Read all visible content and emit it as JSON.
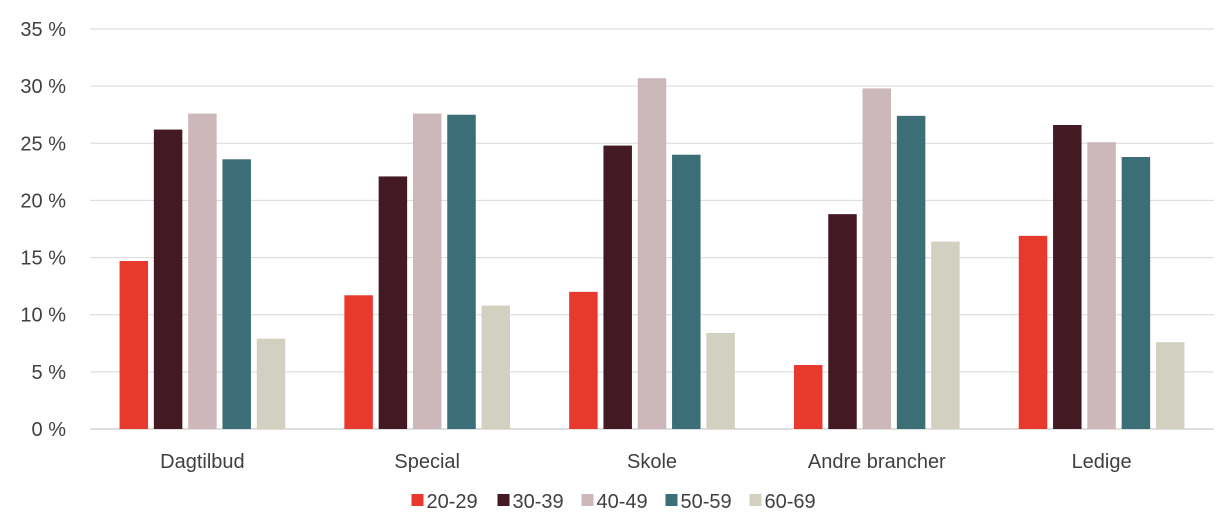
{
  "chart_data": {
    "type": "bar",
    "title": "",
    "xlabel": "",
    "ylabel": "",
    "categories": [
      "Dagtilbud",
      "Special",
      "Skole",
      "Andre brancher",
      "Ledige"
    ],
    "series": [
      {
        "name": "20-29",
        "color": "#e8392e",
        "values": [
          14.7,
          11.7,
          12.0,
          5.6,
          16.9
        ]
      },
      {
        "name": "30-39",
        "color": "#431a24",
        "values": [
          26.2,
          22.1,
          24.8,
          18.8,
          26.6
        ]
      },
      {
        "name": "40-49",
        "color": "#ccb7ba",
        "values": [
          27.6,
          27.6,
          30.7,
          29.8,
          25.1
        ]
      },
      {
        "name": "50-59",
        "color": "#3c6e77",
        "values": [
          23.6,
          27.5,
          24.0,
          27.4,
          23.8
        ]
      },
      {
        "name": "60-69",
        "color": "#d2d1c1",
        "values": [
          7.9,
          10.8,
          8.4,
          16.4,
          7.6
        ]
      }
    ],
    "ylim": [
      0,
      35
    ],
    "yticks": [
      0,
      5,
      10,
      15,
      20,
      25,
      30,
      35
    ],
    "ytick_labels": [
      "0 %",
      "5 %",
      "10 %",
      "15 %",
      "20 %",
      "25 %",
      "30 %",
      "35 %"
    ],
    "grid": true,
    "legend_position": "bottom"
  }
}
